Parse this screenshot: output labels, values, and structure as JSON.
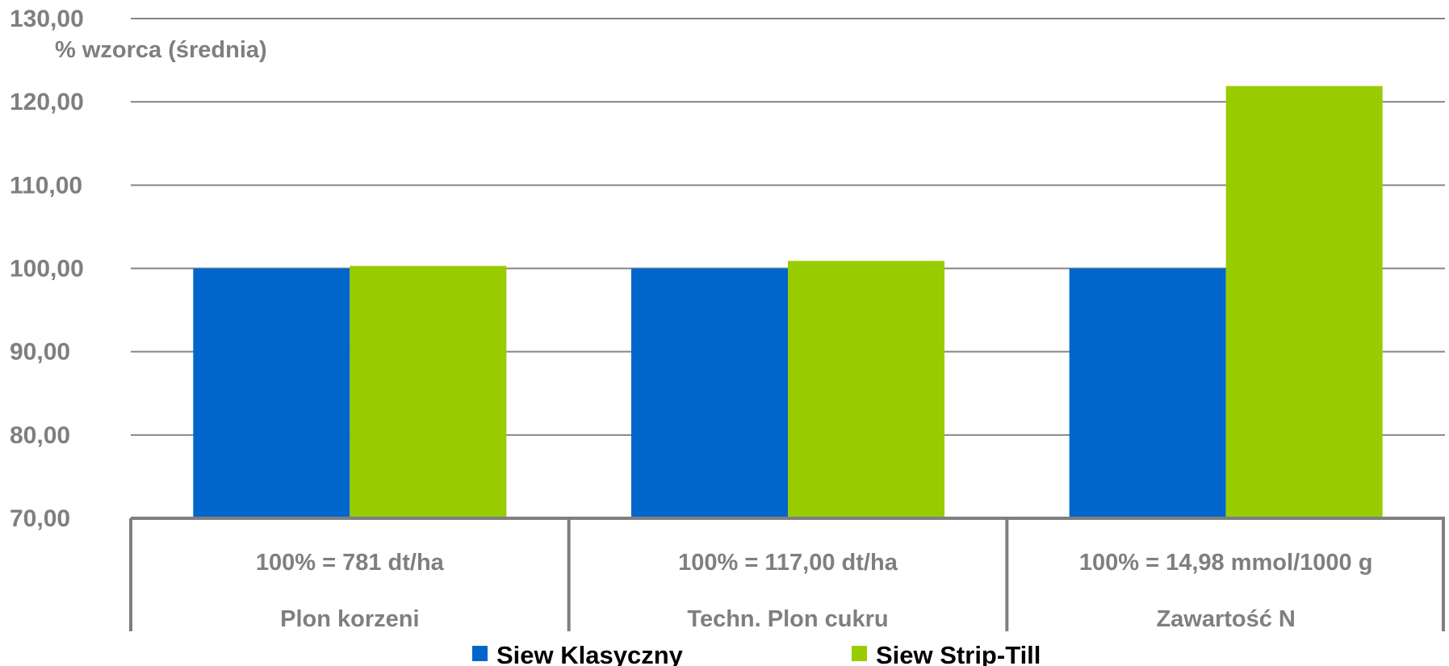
{
  "chart_data": {
    "type": "bar",
    "ylabel": "% wzorca (średnia)",
    "ylim": [
      70,
      130
    ],
    "yticks": [
      "70,00",
      "80,00",
      "90,00",
      "100,00",
      "110,00",
      "120,00",
      "130,00"
    ],
    "ytick_values": [
      70,
      80,
      90,
      100,
      110,
      120,
      130
    ],
    "grid": true,
    "legend_position": "bottom",
    "categories": [
      {
        "name": "Plon korzeni",
        "reference": "100% = 781 dt/ha"
      },
      {
        "name": "Techn. Plon cukru",
        "reference": "100% = 117,00 dt/ha"
      },
      {
        "name": "Zawartość N",
        "reference": "100% = 14,98 mmol/1000 g"
      }
    ],
    "series": [
      {
        "name": "Siew Klasyczny",
        "color": "#0066cc",
        "values": [
          100.0,
          100.0,
          100.0
        ]
      },
      {
        "name": "Siew Strip-Till",
        "color": "#99cc00",
        "values": [
          100.3,
          100.9,
          121.9
        ]
      }
    ]
  }
}
